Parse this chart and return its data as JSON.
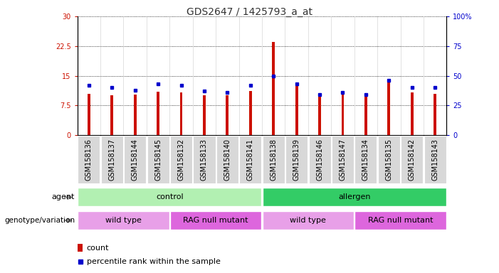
{
  "title": "GDS2647 / 1425793_a_at",
  "samples": [
    "GSM158136",
    "GSM158137",
    "GSM158144",
    "GSM158145",
    "GSM158132",
    "GSM158133",
    "GSM158140",
    "GSM158141",
    "GSM158138",
    "GSM158139",
    "GSM158146",
    "GSM158147",
    "GSM158134",
    "GSM158135",
    "GSM158142",
    "GSM158143"
  ],
  "count_values": [
    10.5,
    10.1,
    10.3,
    11.0,
    10.8,
    10.1,
    10.1,
    11.2,
    23.5,
    12.5,
    10.0,
    10.2,
    9.8,
    14.0,
    10.8,
    10.5
  ],
  "percentile_values": [
    42,
    40,
    38,
    43,
    42,
    37,
    36,
    42,
    50,
    43,
    34,
    36,
    34,
    46,
    40,
    40
  ],
  "agent_groups": [
    {
      "label": "control",
      "start": 0,
      "end": 8,
      "color": "#b2f0b2"
    },
    {
      "label": "allergen",
      "start": 8,
      "end": 16,
      "color": "#33cc66"
    }
  ],
  "genotype_groups": [
    {
      "label": "wild type",
      "start": 0,
      "end": 4,
      "color": "#e8a0e8"
    },
    {
      "label": "RAG null mutant",
      "start": 4,
      "end": 8,
      "color": "#dd66dd"
    },
    {
      "label": "wild type",
      "start": 8,
      "end": 12,
      "color": "#e8a0e8"
    },
    {
      "label": "RAG null mutant",
      "start": 12,
      "end": 16,
      "color": "#dd66dd"
    }
  ],
  "bar_color": "#cc1100",
  "percentile_color": "#0000cc",
  "left_axis_color": "#cc1100",
  "right_axis_color": "#0000cc",
  "ylim_left": [
    0,
    30
  ],
  "ylim_right": [
    0,
    100
  ],
  "yticks_left": [
    0,
    7.5,
    15,
    22.5,
    30
  ],
  "ytick_labels_left": [
    "0",
    "7.5",
    "15",
    "22.5",
    "30"
  ],
  "yticks_right": [
    0,
    25,
    50,
    75,
    100
  ],
  "ytick_labels_right": [
    "0",
    "25",
    "50",
    "75",
    "100%"
  ],
  "background_color": "#ffffff",
  "grid_color": "#000000",
  "title_fontsize": 10,
  "tick_fontsize": 7,
  "label_fontsize": 8,
  "annotation_fontsize": 8,
  "bar_width": 0.12
}
